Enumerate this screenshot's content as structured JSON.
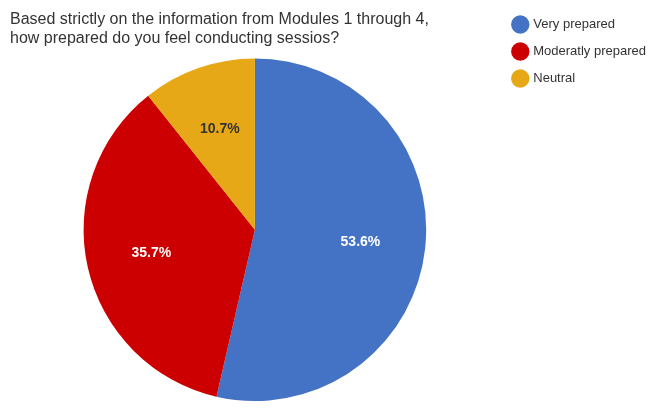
{
  "chart_data": {
    "type": "pie",
    "title": "Based strictly on the information from Modules 1 through 4,\nhow prepared do you feel conducting sessios?",
    "categories": [
      "Very prepared",
      "Moderatly prepared",
      "Neutral"
    ],
    "values": [
      53.6,
      35.7,
      10.7
    ],
    "value_labels": [
      "53.6%",
      "35.7%",
      "10.7%"
    ],
    "colors": [
      "#4472C4",
      "#CC0000",
      "#E6A817"
    ],
    "data_labels": true,
    "legend": "right"
  }
}
